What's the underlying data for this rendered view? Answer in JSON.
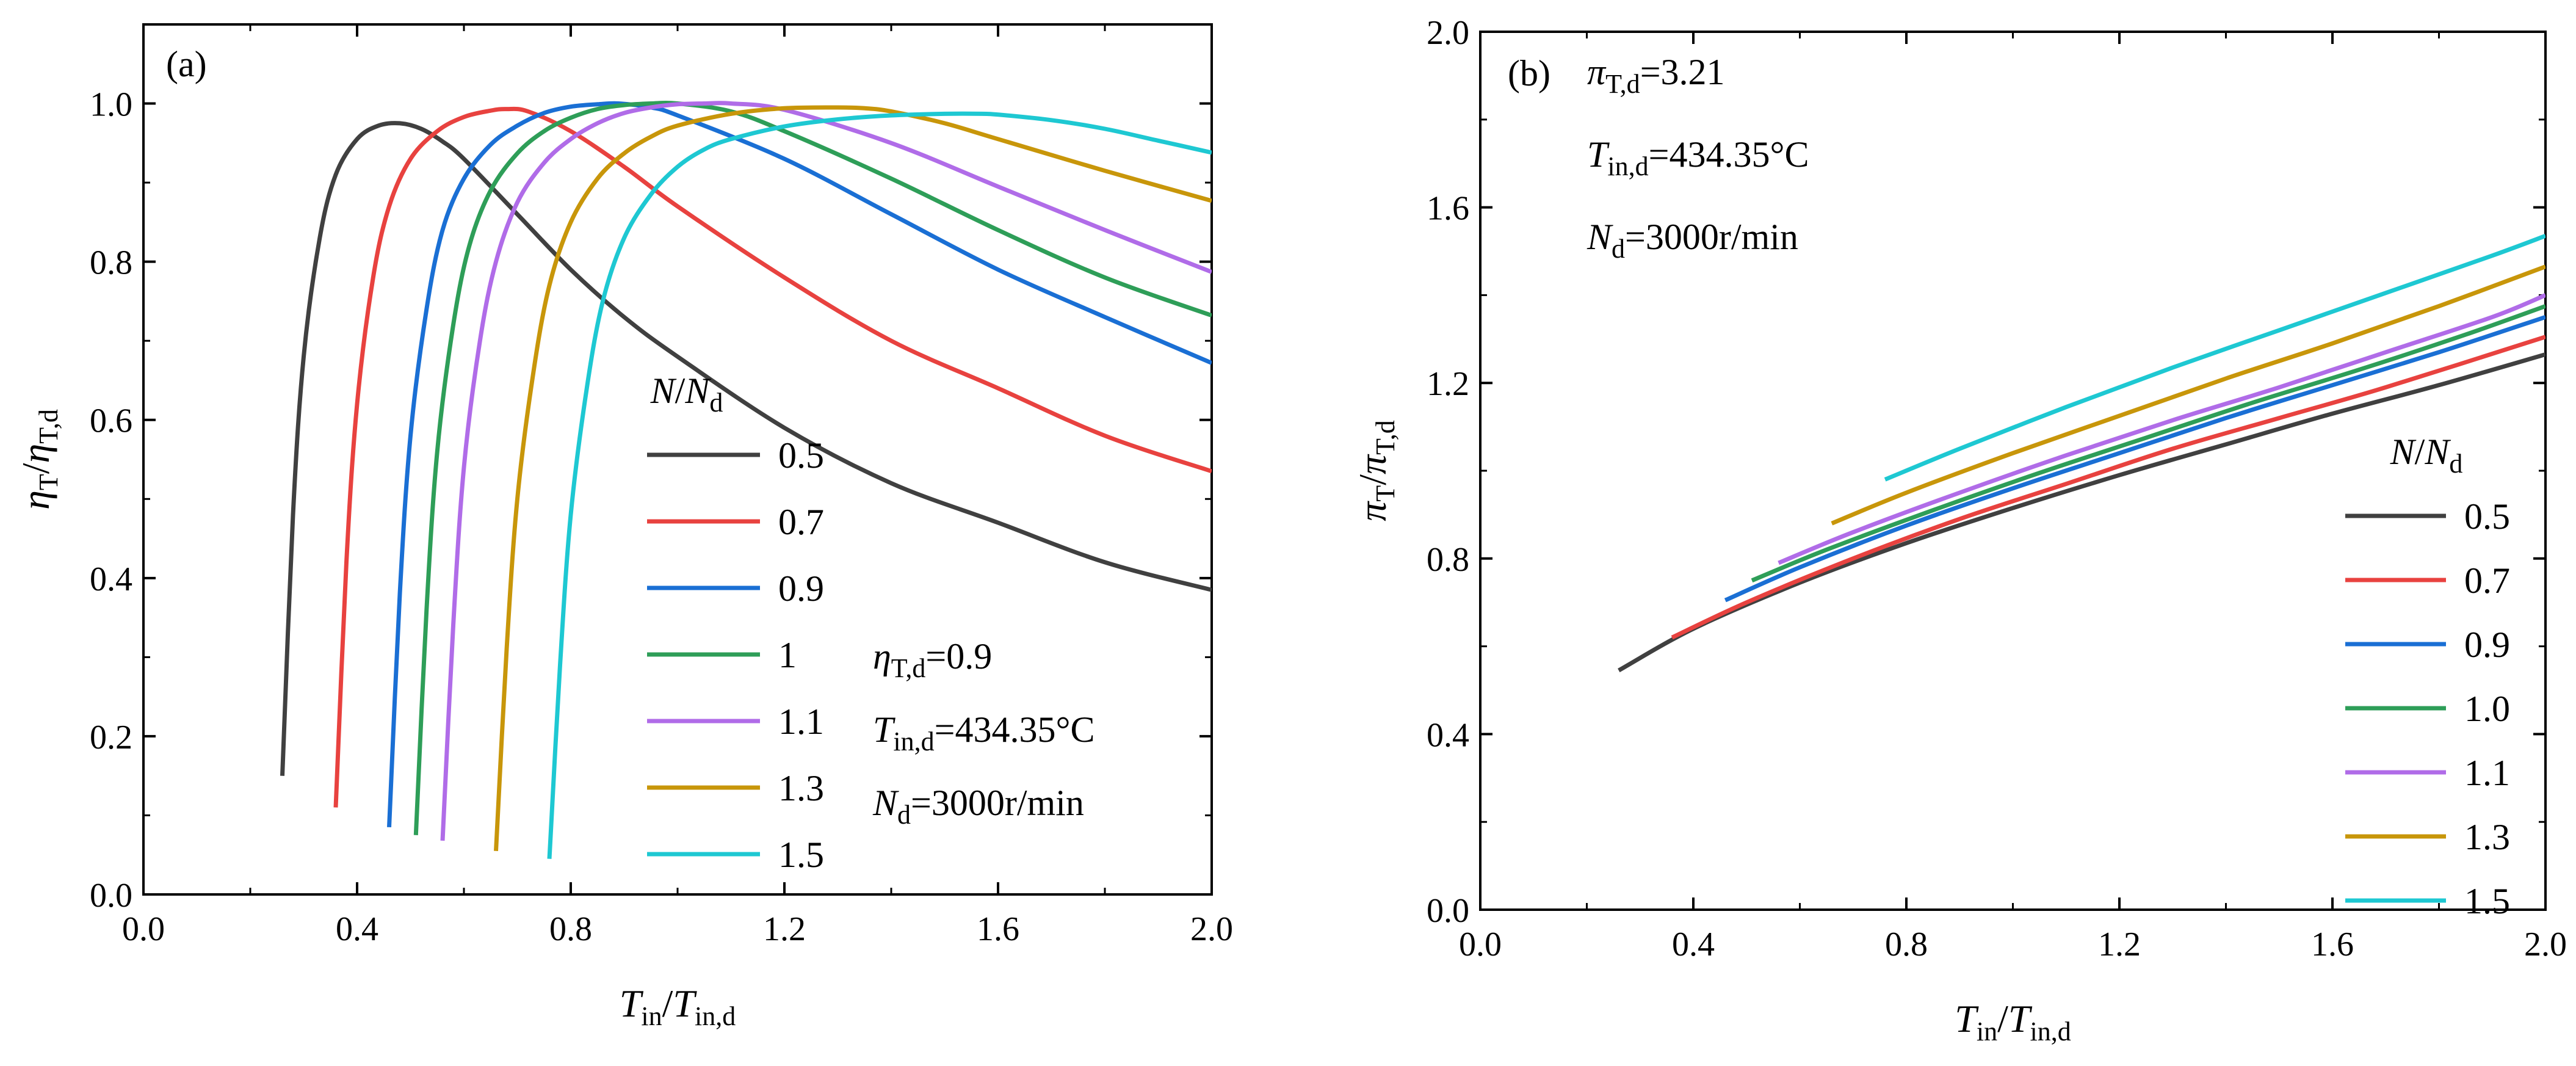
{
  "chart_data": [
    {
      "type": "line",
      "panel_label": "(a)",
      "xlabel": {
        "main": "T",
        "main_sub": "in",
        "den": "T",
        "den_sub": "in,d"
      },
      "ylabel": {
        "main": "η",
        "main_sub": "T",
        "den": "η",
        "den_sub": "T,d"
      },
      "xlim": [
        0.0,
        2.0
      ],
      "ylim": [
        0.0,
        1.1
      ],
      "xticks": [
        "0.0",
        "0.4",
        "0.8",
        "1.2",
        "1.6",
        "2.0"
      ],
      "yticks": [
        "0.0",
        "0.2",
        "0.4",
        "0.6",
        "0.8",
        "1.0"
      ],
      "legend": {
        "title_main": "N",
        "title_den": "N",
        "title_sub": "d",
        "position": "center-right"
      },
      "annotations": [
        {
          "sym": "η",
          "sub": "T,d",
          "rest": "=0.9"
        },
        {
          "sym": "T",
          "sub": "in,d",
          "rest": "=434.35°C"
        },
        {
          "sym": "N",
          "sub": "d",
          "rest": "=3000r/min"
        }
      ],
      "series": [
        {
          "name": "0.5",
          "color": "#404040",
          "x": [
            0.26,
            0.28,
            0.3,
            0.33,
            0.36,
            0.4,
            0.44,
            0.48,
            0.52,
            0.56,
            0.6,
            0.7,
            0.8,
            0.9,
            1.0,
            1.2,
            1.4,
            1.6,
            1.8,
            2.0
          ],
          "y": [
            0.15,
            0.48,
            0.68,
            0.83,
            0.91,
            0.955,
            0.972,
            0.975,
            0.968,
            0.952,
            0.93,
            0.86,
            0.79,
            0.73,
            0.68,
            0.59,
            0.52,
            0.47,
            0.42,
            0.385
          ]
        },
        {
          "name": "0.7",
          "color": "#e8423f",
          "x": [
            0.36,
            0.38,
            0.4,
            0.43,
            0.46,
            0.5,
            0.55,
            0.6,
            0.65,
            0.68,
            0.72,
            0.8,
            0.9,
            1.0,
            1.2,
            1.4,
            1.6,
            1.8,
            2.0
          ],
          "y": [
            0.11,
            0.42,
            0.62,
            0.78,
            0.87,
            0.93,
            0.965,
            0.983,
            0.991,
            0.993,
            0.99,
            0.965,
            0.92,
            0.87,
            0.78,
            0.7,
            0.64,
            0.58,
            0.535
          ]
        },
        {
          "name": "0.9",
          "color": "#1a6fd4",
          "x": [
            0.46,
            0.48,
            0.5,
            0.53,
            0.56,
            0.6,
            0.65,
            0.7,
            0.75,
            0.8,
            0.85,
            0.89,
            0.95,
            1.0,
            1.2,
            1.4,
            1.6,
            1.8,
            2.0
          ],
          "y": [
            0.085,
            0.38,
            0.58,
            0.74,
            0.84,
            0.905,
            0.948,
            0.972,
            0.988,
            0.996,
            0.999,
            1.0,
            0.995,
            0.985,
            0.93,
            0.86,
            0.79,
            0.73,
            0.672
          ]
        },
        {
          "name": "1",
          "color": "#2e9e58",
          "x": [
            0.51,
            0.53,
            0.55,
            0.58,
            0.61,
            0.65,
            0.7,
            0.75,
            0.8,
            0.85,
            0.9,
            0.95,
            1.0,
            1.1,
            1.2,
            1.4,
            1.6,
            1.8,
            2.0
          ],
          "y": [
            0.075,
            0.36,
            0.56,
            0.72,
            0.82,
            0.89,
            0.937,
            0.965,
            0.982,
            0.993,
            0.998,
            1.0,
            1.0,
            0.99,
            0.965,
            0.905,
            0.84,
            0.78,
            0.732
          ]
        },
        {
          "name": "1.1",
          "color": "#b06ce8",
          "x": [
            0.56,
            0.58,
            0.6,
            0.63,
            0.66,
            0.7,
            0.75,
            0.8,
            0.85,
            0.9,
            0.95,
            1.0,
            1.05,
            1.1,
            1.2,
            1.4,
            1.6,
            1.8,
            2.0
          ],
          "y": [
            0.068,
            0.34,
            0.54,
            0.7,
            0.8,
            0.875,
            0.925,
            0.955,
            0.975,
            0.988,
            0.995,
            0.999,
            1.0,
            1.0,
            0.992,
            0.95,
            0.895,
            0.84,
            0.787
          ]
        },
        {
          "name": "1.3",
          "color": "#c8960a",
          "x": [
            0.66,
            0.68,
            0.7,
            0.73,
            0.76,
            0.8,
            0.85,
            0.9,
            0.95,
            1.0,
            1.1,
            1.2,
            1.3,
            1.35,
            1.4,
            1.5,
            1.6,
            1.8,
            2.0
          ],
          "y": [
            0.055,
            0.31,
            0.5,
            0.66,
            0.77,
            0.85,
            0.905,
            0.937,
            0.958,
            0.972,
            0.987,
            0.994,
            0.995,
            0.994,
            0.99,
            0.975,
            0.955,
            0.915,
            0.877
          ]
        },
        {
          "name": "1.5",
          "color": "#1ec8d2",
          "x": [
            0.76,
            0.78,
            0.8,
            0.83,
            0.86,
            0.9,
            0.95,
            1.0,
            1.05,
            1.1,
            1.2,
            1.3,
            1.4,
            1.5,
            1.57,
            1.6,
            1.7,
            1.8,
            1.9,
            2.0
          ],
          "y": [
            0.045,
            0.29,
            0.48,
            0.64,
            0.75,
            0.83,
            0.885,
            0.92,
            0.942,
            0.955,
            0.971,
            0.98,
            0.985,
            0.987,
            0.987,
            0.986,
            0.979,
            0.968,
            0.953,
            0.938
          ]
        }
      ]
    },
    {
      "type": "line",
      "panel_label": "(b)",
      "xlabel": {
        "main": "T",
        "main_sub": "in",
        "den": "T",
        "den_sub": "in,d"
      },
      "ylabel": {
        "main": "π",
        "main_sub": "T",
        "den": "π",
        "den_sub": "T,d"
      },
      "xlim": [
        0.0,
        2.0
      ],
      "ylim": [
        0.0,
        2.0
      ],
      "xticks": [
        "0.0",
        "0.4",
        "0.8",
        "1.2",
        "1.6",
        "2.0"
      ],
      "yticks": [
        "0.0",
        "0.4",
        "0.8",
        "1.2",
        "1.6",
        "2.0"
      ],
      "legend": {
        "title_main": "N",
        "title_den": "N",
        "title_sub": "d",
        "position": "lower-right"
      },
      "annotations": [
        {
          "sym": "π",
          "sub": "T,d",
          "rest": "=3.21"
        },
        {
          "sym": "T",
          "sub": "in,d",
          "rest": "=434.35°C"
        },
        {
          "sym": "N",
          "sub": "d",
          "rest": "=3000r/min"
        }
      ],
      "series": [
        {
          "name": "0.5",
          "color": "#404040",
          "x": [
            0.26,
            0.4,
            0.6,
            0.8,
            1.0,
            1.2,
            1.4,
            1.6,
            1.8,
            2.0
          ],
          "y": [
            0.545,
            0.64,
            0.745,
            0.835,
            0.915,
            0.99,
            1.06,
            1.13,
            1.195,
            1.265
          ]
        },
        {
          "name": "0.7",
          "color": "#e8423f",
          "x": [
            0.36,
            0.5,
            0.7,
            0.9,
            1.1,
            1.3,
            1.5,
            1.7,
            2.0
          ],
          "y": [
            0.62,
            0.7,
            0.8,
            0.89,
            0.97,
            1.05,
            1.12,
            1.19,
            1.305
          ]
        },
        {
          "name": "0.9",
          "color": "#1a6fd4",
          "x": [
            0.46,
            0.6,
            0.8,
            1.0,
            1.2,
            1.4,
            1.6,
            1.8,
            2.0
          ],
          "y": [
            0.705,
            0.78,
            0.875,
            0.96,
            1.04,
            1.12,
            1.195,
            1.27,
            1.35
          ]
        },
        {
          "name": "1.0",
          "color": "#2e9e58",
          "x": [
            0.51,
            0.65,
            0.85,
            1.05,
            1.25,
            1.45,
            1.65,
            1.85,
            2.0
          ],
          "y": [
            0.75,
            0.82,
            0.91,
            0.995,
            1.075,
            1.155,
            1.23,
            1.31,
            1.375
          ]
        },
        {
          "name": "1.1",
          "color": "#b06ce8",
          "x": [
            0.56,
            0.7,
            0.9,
            1.1,
            1.3,
            1.5,
            1.7,
            1.9,
            2.0
          ],
          "y": [
            0.79,
            0.86,
            0.95,
            1.035,
            1.115,
            1.19,
            1.27,
            1.35,
            1.4
          ]
        },
        {
          "name": "1.3",
          "color": "#c8960a",
          "x": [
            0.66,
            0.8,
            1.0,
            1.2,
            1.4,
            1.6,
            1.8,
            2.0
          ],
          "y": [
            0.88,
            0.95,
            1.04,
            1.125,
            1.21,
            1.29,
            1.375,
            1.465
          ]
        },
        {
          "name": "1.5",
          "color": "#1ec8d2",
          "x": [
            0.76,
            0.9,
            1.1,
            1.3,
            1.5,
            1.7,
            1.9,
            2.0
          ],
          "y": [
            0.98,
            1.05,
            1.145,
            1.235,
            1.32,
            1.405,
            1.49,
            1.535
          ]
        }
      ]
    }
  ]
}
